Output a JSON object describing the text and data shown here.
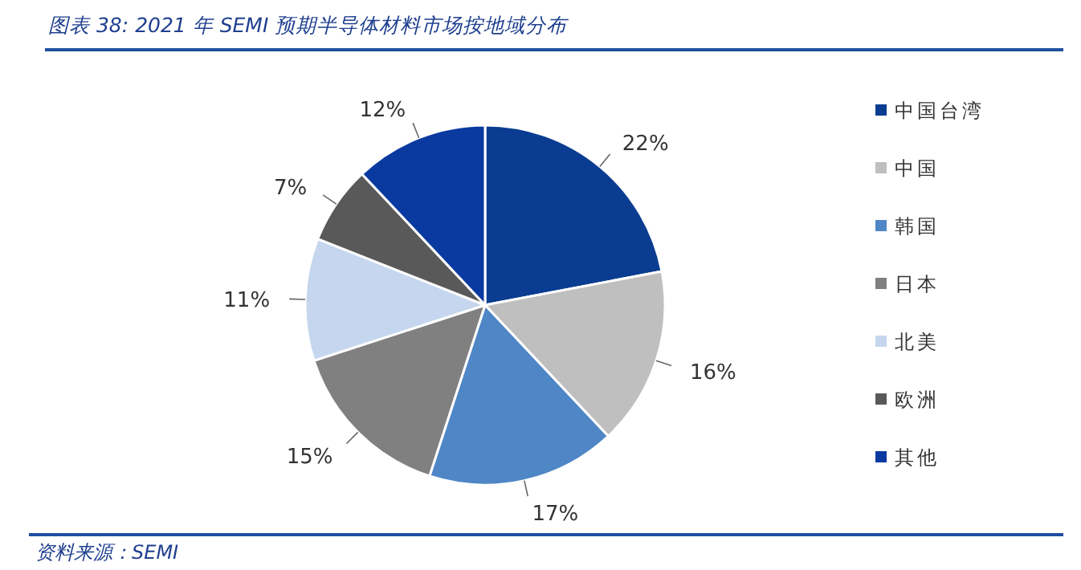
{
  "chart_data": {
    "type": "pie",
    "title": "图表 38:  2021 年 SEMI 预期半导体材料市场按地域分布",
    "categories": [
      "中国台湾",
      "中国",
      "韩国",
      "日本",
      "北美",
      "欧洲",
      "其他"
    ],
    "values": [
      22,
      16,
      17,
      15,
      11,
      7,
      12
    ],
    "colors": [
      "#0a3d91",
      "#bfbfbf",
      "#4f86c6",
      "#808080",
      "#c5d6ee",
      "#595959",
      "#0a3aa0"
    ],
    "value_labels": [
      "22%",
      "16%",
      "17%",
      "15%",
      "11%",
      "7%",
      "12%"
    ],
    "legend": "right",
    "annotations": [
      "资料来源：SEMI"
    ]
  }
}
